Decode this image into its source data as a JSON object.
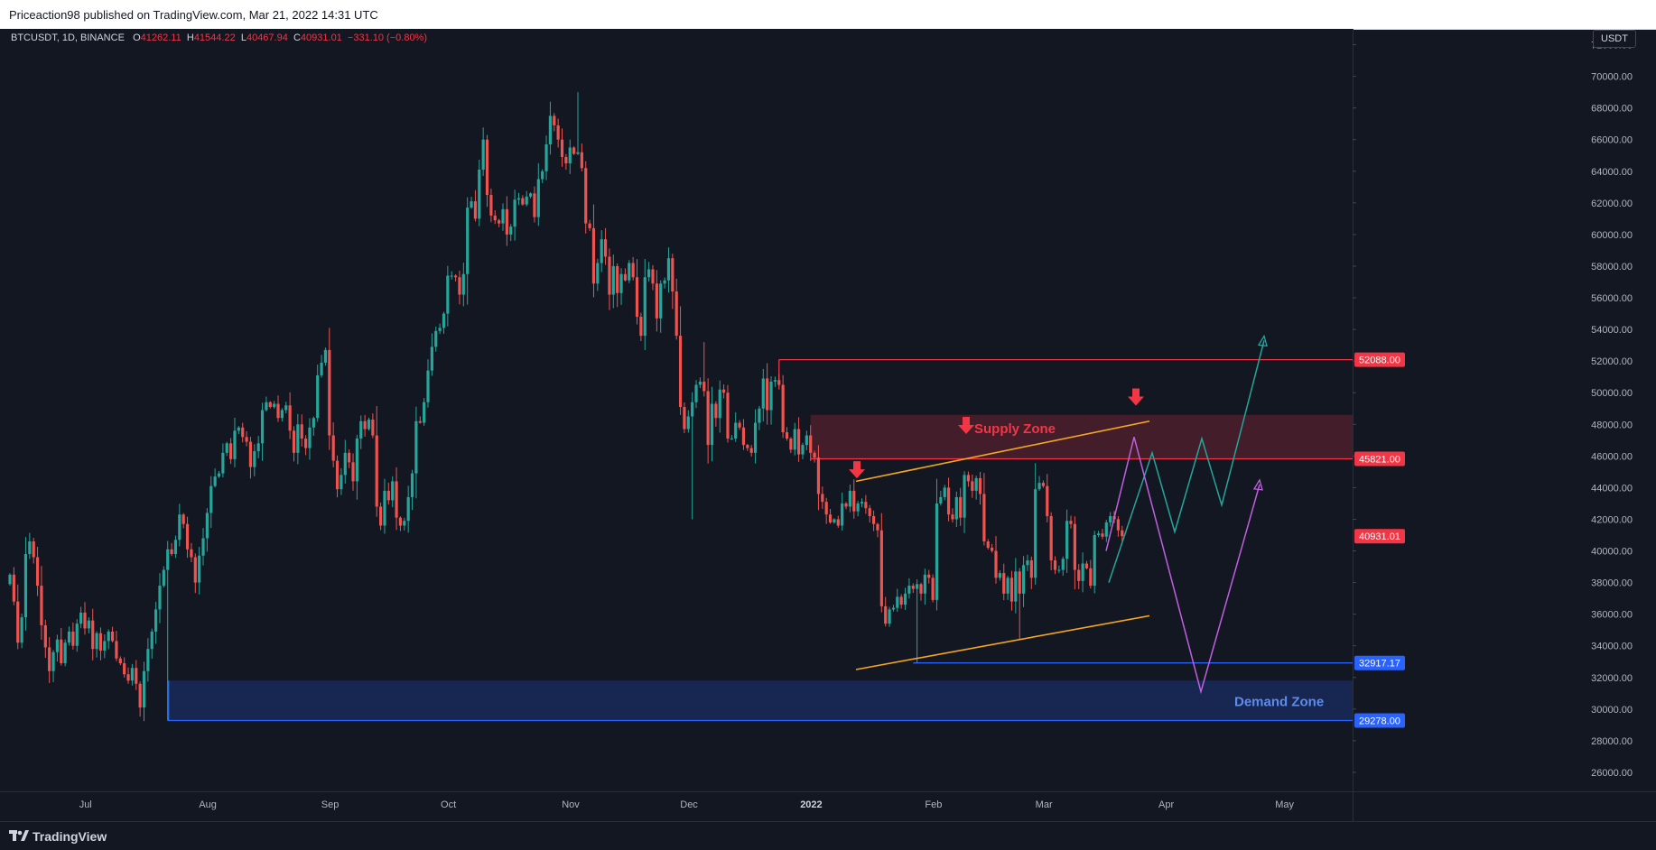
{
  "publisher": "Priceaction98 published on TradingView.com, Mar 21, 2022 14:31 UTC",
  "symbol": {
    "name": "BTCUSDT, 1D, BINANCE",
    "o_label": "O",
    "o": "41262.11",
    "h_label": "H",
    "h": "41544.22",
    "l_label": "L",
    "l": "40467.94",
    "c_label": "C",
    "c": "40931.01",
    "change": "−331.10 (−0.80%)"
  },
  "currency": "USDT",
  "brand": "TradingView",
  "colors": {
    "bull": "#26a69a",
    "bear": "#ef5350",
    "supply": "#f23645",
    "demand": "#2962ff",
    "wedge": "#f5a623",
    "projection_green": "#26a69a",
    "projection_purple": "#c060e0"
  },
  "chart_data": {
    "type": "candlestick",
    "y_axis": {
      "min": 24800,
      "max": 73000,
      "ticks": [
        "26000.00",
        "28000.00",
        "30000.00",
        "32000.00",
        "34000.00",
        "36000.00",
        "38000.00",
        "40000.00",
        "42000.00",
        "44000.00",
        "46000.00",
        "48000.00",
        "50000.00",
        "52000.00",
        "54000.00",
        "56000.00",
        "58000.00",
        "60000.00",
        "62000.00",
        "64000.00",
        "66000.00",
        "68000.00",
        "70000.00",
        "72000.00"
      ]
    },
    "x_axis": {
      "ticks": [
        "Jul",
        "Aug",
        "Sep",
        "Oct",
        "Nov",
        "Dec",
        "2022",
        "Feb",
        "Mar",
        "Apr",
        "May"
      ],
      "bold": [
        "2022"
      ]
    },
    "closes": [
      38500,
      36800,
      34200,
      35800,
      39800,
      40600,
      39600,
      37800,
      35300,
      33900,
      32400,
      33600,
      34400,
      32900,
      34200,
      34900,
      34000,
      35400,
      36100,
      35100,
      35600,
      33800,
      34800,
      33700,
      34300,
      34900,
      34300,
      33200,
      32900,
      32200,
      31800,
      32600,
      31600,
      30100,
      32400,
      33800,
      34900,
      36300,
      37800,
      38800,
      40100,
      39800,
      40700,
      42300,
      41700,
      40100,
      39600,
      38000,
      39700,
      40800,
      42400,
      44100,
      44700,
      44900,
      46200,
      46800,
      45800,
      47600,
      47800,
      47200,
      46900,
      45300,
      46300,
      46800,
      48900,
      49400,
      49100,
      49300,
      48400,
      48900,
      49200,
      47600,
      46200,
      48000,
      47100,
      46500,
      47800,
      48400,
      51100,
      51900,
      52700,
      47300,
      45700,
      43900,
      44800,
      46200,
      45600,
      44400,
      47100,
      48200,
      47700,
      48300,
      47300,
      42800,
      41600,
      43800,
      43200,
      44400,
      42100,
      41600,
      41900,
      43400,
      44900,
      48200,
      48100,
      49400,
      51400,
      52900,
      53900,
      54100,
      55000,
      57400,
      57400,
      57300,
      56200,
      57500,
      61700,
      62100,
      61000,
      64100,
      66000,
      62500,
      61200,
      60900,
      60700,
      61600,
      60000,
      60500,
      62200,
      62300,
      61900,
      62400,
      62600,
      61100,
      63500,
      64000,
      65700,
      67500,
      66900,
      66000,
      64900,
      64500,
      65500,
      65100,
      65200,
      64200,
      60700,
      60400,
      56900,
      58200,
      59700,
      58600,
      56200,
      58000,
      56300,
      57500,
      57100,
      58200,
      57300,
      54800,
      53600,
      57300,
      57800,
      56900,
      54700,
      56900,
      57100,
      58500,
      56400,
      53600,
      49100,
      47700,
      48500,
      49400,
      50500,
      50700,
      50100,
      46700,
      49300,
      48400,
      50200,
      50000,
      47100,
      47100,
      48100,
      47800,
      46700,
      46500,
      46200,
      48100,
      49000,
      50900,
      48900,
      50700,
      50800,
      50500,
      47500,
      47100,
      46400,
      47700,
      46100,
      46700,
      47300,
      46200,
      45900,
      43600,
      43100,
      42300,
      41800,
      42000,
      41600,
      43000,
      42800,
      43800,
      42500,
      43000,
      43100,
      42700,
      42200,
      41700,
      41300,
      36500,
      35400,
      36300,
      36400,
      37100,
      36600,
      37300,
      37800,
      37600,
      37900,
      37300,
      38500,
      38300,
      36900,
      43000,
      43400,
      44000,
      42300,
      42000,
      43400,
      42100,
      44800,
      44400,
      43800,
      44600,
      43600,
      40600,
      40200,
      40000,
      38300,
      38600,
      37300,
      38300,
      36800,
      38700,
      37300,
      39100,
      39400,
      38300,
      43900,
      44300,
      44100,
      42200,
      39400,
      38800,
      38800,
      39500,
      41900,
      41700,
      38800,
      38100,
      39200,
      38900,
      37800,
      41000,
      41100,
      40900,
      41800,
      42200,
      42000,
      41300,
      40931
    ],
    "supply_zone": {
      "label": "Supply Zone",
      "from": 45821,
      "to": 48600
    },
    "demand_zone": {
      "label": "Demand Zone",
      "from": 29278,
      "to": 31800
    },
    "levels": [
      {
        "value": "52088.00",
        "color": "#f23645"
      },
      {
        "value": "45821.00",
        "color": "#f23645"
      },
      {
        "value": "32917.17",
        "color": "#2962ff"
      },
      {
        "value": "29278.00",
        "color": "#2962ff"
      }
    ],
    "last_price": {
      "value": "40931.01",
      "color": "#f23645"
    },
    "wedge": {
      "upper": [
        [
          0,
          44400
        ],
        [
          1,
          48200
        ]
      ],
      "lower": [
        [
          0,
          32500
        ],
        [
          1,
          35900
        ]
      ]
    },
    "projection_green": [
      38000,
      46200,
      41200,
      47100,
      42900,
      53300
    ],
    "projection_purple": [
      40000,
      47200,
      31100,
      44200
    ]
  }
}
